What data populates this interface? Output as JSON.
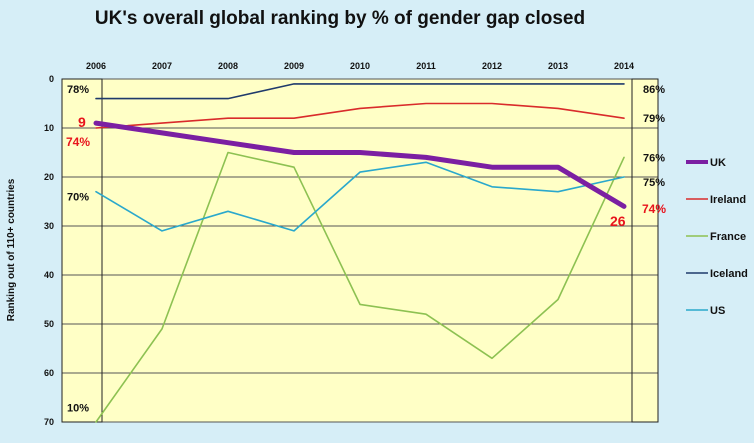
{
  "chart_data": {
    "type": "line",
    "title": "UK's overall global ranking by % of gender gap closed",
    "xlabel": "",
    "ylabel": "Ranking out of 110+ countries",
    "x": [
      "2006",
      "2007",
      "2008",
      "2009",
      "2010",
      "2011",
      "2012",
      "2013",
      "2014"
    ],
    "ylim": [
      70,
      0
    ],
    "yticks": [
      "0",
      "10",
      "20",
      "30",
      "40",
      "50",
      "60",
      "70"
    ],
    "legend_position": "right",
    "series": [
      {
        "name": "UK",
        "color": "#7b1fa2",
        "width": 5,
        "values": [
          9,
          11,
          13,
          15,
          15,
          16,
          18,
          18,
          26
        ]
      },
      {
        "name": "Ireland",
        "color": "#d92b2b",
        "width": 1.6,
        "values": [
          10,
          9,
          8,
          8,
          6,
          5,
          5,
          6,
          8
        ]
      },
      {
        "name": "France",
        "color": "#8dc152",
        "width": 1.6,
        "values": [
          70,
          51,
          15,
          18,
          46,
          48,
          57,
          45,
          16
        ]
      },
      {
        "name": "Iceland",
        "color": "#1f3a6b",
        "width": 1.6,
        "values": [
          4,
          4,
          4,
          1,
          1,
          1,
          1,
          1,
          1
        ]
      },
      {
        "name": "US",
        "color": "#2aa8cc",
        "width": 1.6,
        "values": [
          23,
          31,
          27,
          31,
          19,
          17,
          22,
          23,
          20
        ]
      }
    ],
    "annotations": {
      "uk_rank_start": "9",
      "uk_pct_start": "74%",
      "uk_rank_end": "26",
      "uk_pct_end": "74%",
      "left_pcts": [
        {
          "text": "78%",
          "y": 2
        },
        {
          "text": "70%",
          "y": 24
        },
        {
          "text": "10%",
          "y": 67
        }
      ],
      "right_pcts": [
        {
          "text": "86%",
          "y": 2
        },
        {
          "text": "79%",
          "y": 8
        },
        {
          "text": "76%",
          "y": 16
        },
        {
          "text": "75%",
          "y": 21
        }
      ]
    }
  }
}
